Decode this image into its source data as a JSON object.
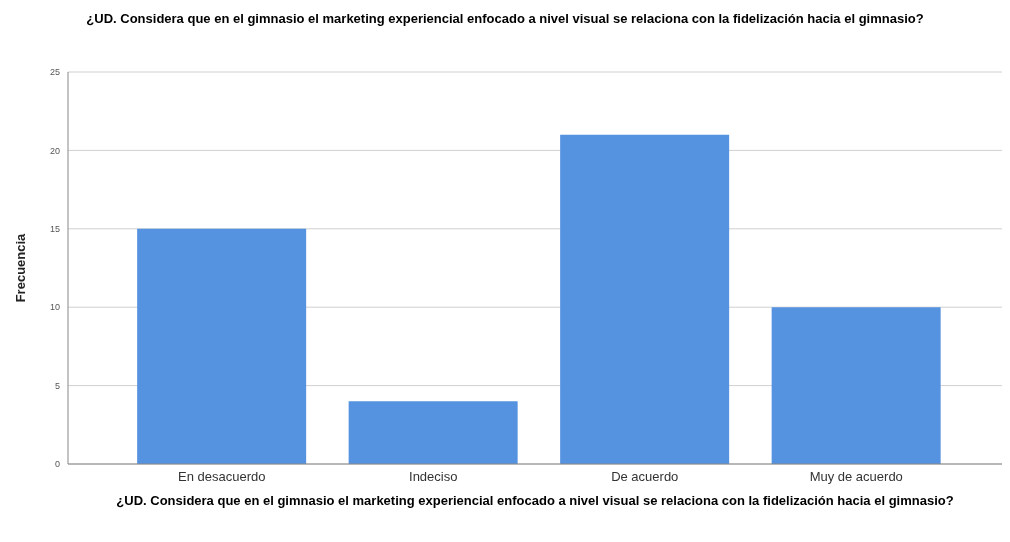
{
  "chart_data": {
    "type": "bar",
    "title": "¿UD. Considera que en el gimnasio el marketing experiencial enfocado a nivel visual se relaciona con la fidelización hacia el gimnasio?",
    "xlabel": "¿UD. Considera que en el gimnasio el marketing experiencial enfocado a nivel visual se relaciona con la fidelización hacia el gimnasio?",
    "ylabel": "Frecuencia",
    "categories": [
      "En desacuerdo",
      "Indeciso",
      "De acuerdo",
      "Muy de acuerdo"
    ],
    "values": [
      15,
      4,
      21,
      10
    ],
    "color": "#5592e0",
    "ylim": [
      0,
      25
    ],
    "yticks": [
      0,
      5,
      10,
      15,
      20,
      25
    ],
    "grid": "y"
  }
}
